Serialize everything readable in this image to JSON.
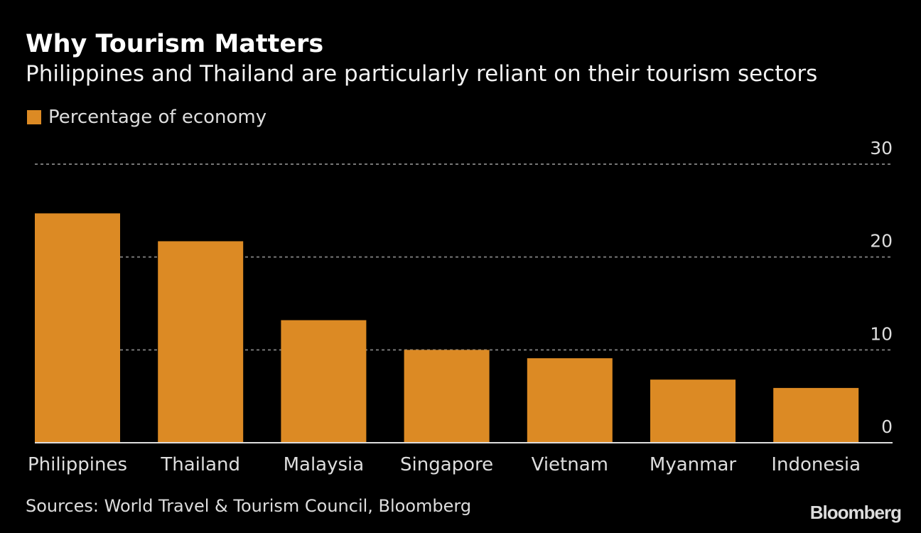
{
  "chart_data": {
    "type": "bar",
    "title": "Why Tourism Matters",
    "subtitle": "Philippines and Thailand are particularly reliant on their tourism sectors",
    "legend": [
      {
        "name": "Percentage of economy",
        "color": "#dc8a24"
      }
    ],
    "legend_position": "top-left",
    "categories": [
      "Philippines",
      "Thailand",
      "Malaysia",
      "Singapore",
      "Vietnam",
      "Myanmar",
      "Indonesia"
    ],
    "series": [
      {
        "name": "Percentage of economy",
        "values": [
          24.7,
          21.7,
          13.2,
          10.0,
          9.1,
          6.8,
          5.9
        ]
      }
    ],
    "ylim": [
      0,
      30
    ],
    "yticks": [
      0,
      10,
      20,
      30
    ],
    "ytick_labels": [
      "0",
      "10",
      "20",
      "30"
    ],
    "y_axis_side": "right",
    "grid": true,
    "xlabel": "",
    "ylabel": ""
  },
  "source": "Sources: World Travel & Tourism Council, Bloomberg",
  "logo": "Bloomberg"
}
